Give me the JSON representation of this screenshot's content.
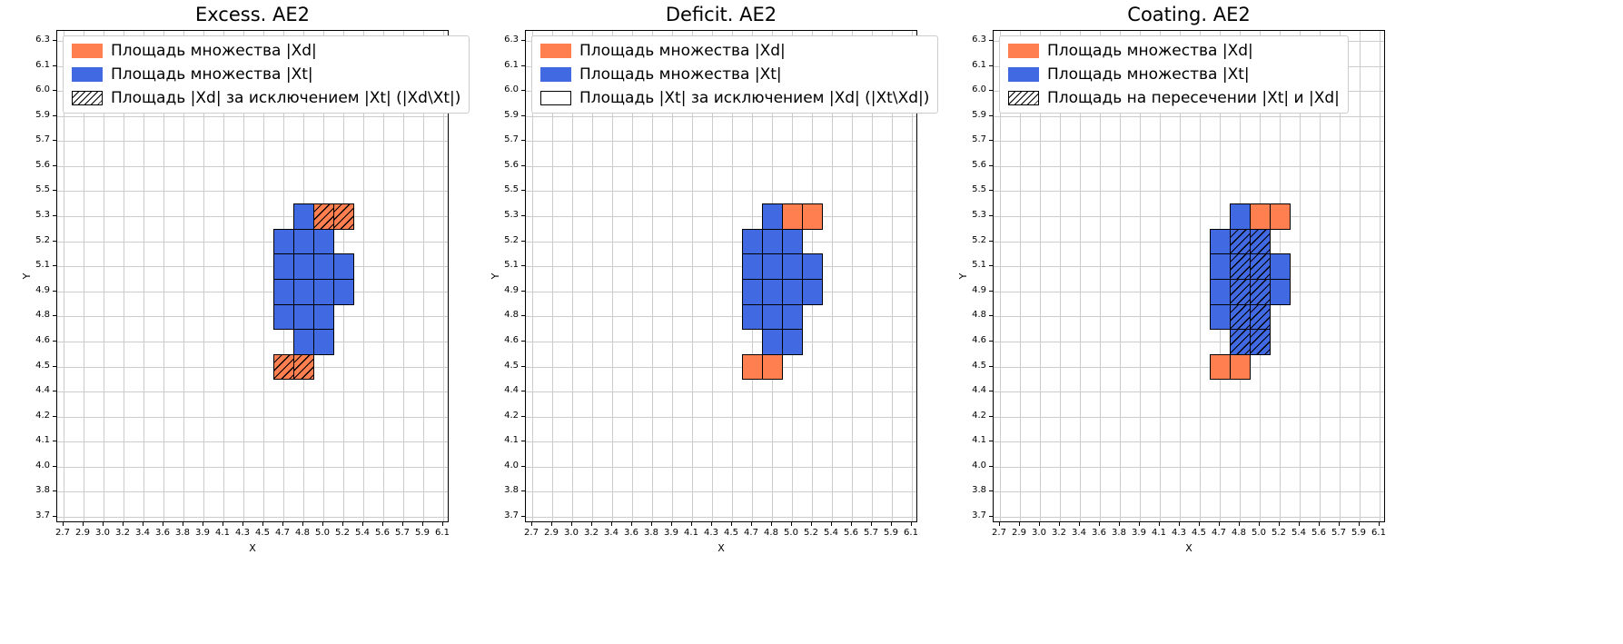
{
  "colors": {
    "xd_orange": "#ff7f50",
    "xt_blue": "#4169e1",
    "grid_line": "#cccccc",
    "cell_edge": "#000000",
    "spine": "#000000",
    "legend_border": "#cccccc",
    "hatch": "#000000",
    "background": "#ffffff"
  },
  "chart_data": [
    {
      "type": "heatmap",
      "title": "Excess. AE2",
      "xlabel": "X",
      "ylabel": "Y",
      "grid": true,
      "legend_position": "upper left",
      "x_range": [
        "2.7",
        "6.1"
      ],
      "y_range": [
        "3.7",
        "6.3"
      ],
      "x_tick_labels": [
        "2.7",
        "2.9",
        "3.0",
        "3.2",
        "3.4",
        "3.6",
        "3.8",
        "3.9",
        "4.1",
        "4.3",
        "4.5",
        "4.7",
        "4.8",
        "5.0",
        "5.2",
        "5.4",
        "5.6",
        "5.7",
        "5.9",
        "6.1"
      ],
      "y_tick_labels_top_to_bottom": [
        "6.3",
        "6.1",
        "6.0",
        "5.9",
        "5.7",
        "5.6",
        "5.5",
        "5.3",
        "5.2",
        "5.1",
        "4.9",
        "4.8",
        "4.6",
        "4.5",
        "4.4",
        "4.2",
        "4.1",
        "4.0",
        "3.8",
        "3.7"
      ],
      "legend": [
        {
          "swatch": "orange",
          "label": "Площадь множества |Xd|"
        },
        {
          "swatch": "blue",
          "label": "Площадь множества  |Xt|"
        },
        {
          "swatch": "hatch",
          "label": "Площадь |Xd| за исключением |Xt| (|Xd\\Xt|)"
        }
      ],
      "cells": {
        "xt_blue": [
          [
            "4.7",
            "4.8"
          ],
          [
            "4.7",
            "4.9"
          ],
          [
            "4.7",
            "5.1"
          ],
          [
            "4.7",
            "5.2"
          ],
          [
            "4.8",
            "4.6"
          ],
          [
            "4.8",
            "4.8"
          ],
          [
            "4.8",
            "4.9"
          ],
          [
            "4.8",
            "5.1"
          ],
          [
            "4.8",
            "5.2"
          ],
          [
            "4.8",
            "5.3"
          ],
          [
            "5.0",
            "4.6"
          ],
          [
            "5.0",
            "4.8"
          ],
          [
            "5.0",
            "4.9"
          ],
          [
            "5.0",
            "5.1"
          ],
          [
            "5.0",
            "5.2"
          ],
          [
            "5.2",
            "4.9"
          ],
          [
            "5.2",
            "5.1"
          ]
        ],
        "xd_orange": [],
        "xd_excess_hatched_orange": [
          [
            "5.0",
            "5.3"
          ],
          [
            "5.2",
            "5.3"
          ],
          [
            "4.7",
            "4.5"
          ],
          [
            "4.8",
            "4.5"
          ]
        ],
        "intersection_hatched_blue": []
      }
    },
    {
      "type": "heatmap",
      "title": "Deficit. AE2",
      "xlabel": "X",
      "ylabel": "Y",
      "grid": true,
      "legend_position": "upper left",
      "x_range": [
        "2.7",
        "6.1"
      ],
      "y_range": [
        "3.7",
        "6.3"
      ],
      "x_tick_labels": [
        "2.7",
        "2.9",
        "3.0",
        "3.2",
        "3.4",
        "3.6",
        "3.8",
        "3.9",
        "4.1",
        "4.3",
        "4.5",
        "4.7",
        "4.8",
        "5.0",
        "5.2",
        "5.4",
        "5.6",
        "5.7",
        "5.9",
        "6.1"
      ],
      "y_tick_labels_top_to_bottom": [
        "6.3",
        "6.1",
        "6.0",
        "5.9",
        "5.7",
        "5.6",
        "5.5",
        "5.3",
        "5.2",
        "5.1",
        "4.9",
        "4.8",
        "4.6",
        "4.5",
        "4.4",
        "4.2",
        "4.1",
        "4.0",
        "3.8",
        "3.7"
      ],
      "legend": [
        {
          "swatch": "orange",
          "label": "Площадь множества |Xd|"
        },
        {
          "swatch": "blue",
          "label": "Площадь множества  |Xt|"
        },
        {
          "swatch": "plain",
          "label": "Площадь |Xt| за исключением |Xd| (|Xt\\Xd|)"
        }
      ],
      "cells": {
        "xt_blue": [
          [
            "4.7",
            "4.8"
          ],
          [
            "4.7",
            "4.9"
          ],
          [
            "4.7",
            "5.1"
          ],
          [
            "4.7",
            "5.2"
          ],
          [
            "4.8",
            "4.6"
          ],
          [
            "4.8",
            "4.8"
          ],
          [
            "4.8",
            "4.9"
          ],
          [
            "4.8",
            "5.1"
          ],
          [
            "4.8",
            "5.2"
          ],
          [
            "4.8",
            "5.3"
          ],
          [
            "5.0",
            "4.6"
          ],
          [
            "5.0",
            "4.8"
          ],
          [
            "5.0",
            "4.9"
          ],
          [
            "5.0",
            "5.1"
          ],
          [
            "5.0",
            "5.2"
          ],
          [
            "5.2",
            "4.9"
          ],
          [
            "5.2",
            "5.1"
          ]
        ],
        "xd_orange": [
          [
            "5.0",
            "5.3"
          ],
          [
            "5.2",
            "5.3"
          ],
          [
            "4.7",
            "4.5"
          ],
          [
            "4.8",
            "4.5"
          ]
        ],
        "xd_excess_hatched_orange": [],
        "intersection_hatched_blue": []
      }
    },
    {
      "type": "heatmap",
      "title": "Coating. AE2",
      "xlabel": "X",
      "ylabel": "Y",
      "grid": true,
      "legend_position": "upper left",
      "x_range": [
        "2.7",
        "6.1"
      ],
      "y_range": [
        "3.7",
        "6.3"
      ],
      "x_tick_labels": [
        "2.7",
        "2.9",
        "3.0",
        "3.2",
        "3.4",
        "3.6",
        "3.8",
        "3.9",
        "4.1",
        "4.3",
        "4.5",
        "4.7",
        "4.8",
        "5.0",
        "5.2",
        "5.4",
        "5.6",
        "5.7",
        "5.9",
        "6.1"
      ],
      "y_tick_labels_top_to_bottom": [
        "6.3",
        "6.1",
        "6.0",
        "5.9",
        "5.7",
        "5.6",
        "5.5",
        "5.3",
        "5.2",
        "5.1",
        "4.9",
        "4.8",
        "4.6",
        "4.5",
        "4.4",
        "4.2",
        "4.1",
        "4.0",
        "3.8",
        "3.7"
      ],
      "legend": [
        {
          "swatch": "orange",
          "label": "Площадь множества |Xd|"
        },
        {
          "swatch": "blue",
          "label": "Площадь множества  |Xt|"
        },
        {
          "swatch": "hatch",
          "label": "Площадь на пересечении |Xt| и |Xd|"
        }
      ],
      "cells": {
        "xt_blue": [
          [
            "4.7",
            "4.8"
          ],
          [
            "4.7",
            "4.9"
          ],
          [
            "4.7",
            "5.1"
          ],
          [
            "4.7",
            "5.2"
          ],
          [
            "4.8",
            "5.3"
          ],
          [
            "5.2",
            "4.9"
          ],
          [
            "5.2",
            "5.1"
          ]
        ],
        "xd_orange": [
          [
            "5.0",
            "5.3"
          ],
          [
            "5.2",
            "5.3"
          ],
          [
            "4.7",
            "4.5"
          ],
          [
            "4.8",
            "4.5"
          ]
        ],
        "xd_excess_hatched_orange": [],
        "intersection_hatched_blue": [
          [
            "4.8",
            "4.6"
          ],
          [
            "4.8",
            "4.8"
          ],
          [
            "4.8",
            "4.9"
          ],
          [
            "4.8",
            "5.1"
          ],
          [
            "4.8",
            "5.2"
          ],
          [
            "5.0",
            "4.6"
          ],
          [
            "5.0",
            "4.8"
          ],
          [
            "5.0",
            "4.9"
          ],
          [
            "5.0",
            "5.1"
          ],
          [
            "5.0",
            "5.2"
          ]
        ]
      }
    }
  ]
}
